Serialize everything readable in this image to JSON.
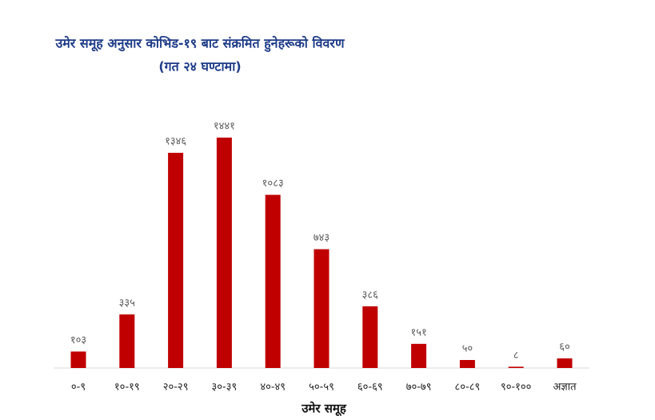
{
  "chart_data": {
    "type": "bar",
    "title": "उमेर समूह अनुसार कोभिड-१९ बाट संक्रमित हुनेहरूको विवरण",
    "subtitle": "(गत २४ घण्टामा)",
    "x_label": "उमेर समूह",
    "categories": [
      "०-९",
      "१०-१९",
      "२०-२९",
      "३०-३९",
      "४०-४९",
      "५०-५९",
      "६०-६९",
      "७०-७९",
      "८०-८९",
      "९०-१००",
      "अज्ञात"
    ],
    "values": [
      103,
      335,
      1346,
      1441,
      1083,
      743,
      386,
      151,
      50,
      8,
      60
    ],
    "value_labels": [
      "१०३",
      "३३५",
      "१३४६",
      "१४४१",
      "१०८३",
      "७४३",
      "३८६",
      "१५१",
      "५०",
      "८",
      "६०"
    ],
    "color": "#c00000"
  }
}
